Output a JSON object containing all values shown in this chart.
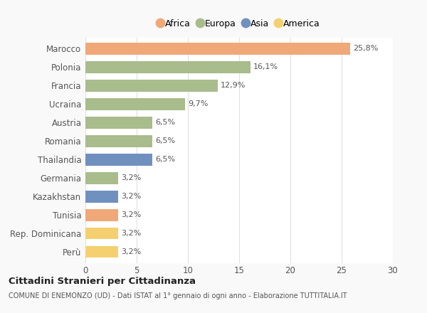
{
  "categories": [
    "Marocco",
    "Polonia",
    "Francia",
    "Ucraina",
    "Austria",
    "Romania",
    "Thailandia",
    "Germania",
    "Kazakhstan",
    "Tunisia",
    "Rep. Dominicana",
    "Perù"
  ],
  "values": [
    25.8,
    16.1,
    12.9,
    9.7,
    6.5,
    6.5,
    6.5,
    3.2,
    3.2,
    3.2,
    3.2,
    3.2
  ],
  "labels": [
    "25,8%",
    "16,1%",
    "12,9%",
    "9,7%",
    "6,5%",
    "6,5%",
    "6,5%",
    "3,2%",
    "3,2%",
    "3,2%",
    "3,2%",
    "3,2%"
  ],
  "colors": [
    "#F0A878",
    "#A8BC8C",
    "#A8BC8C",
    "#A8BC8C",
    "#A8BC8C",
    "#A8BC8C",
    "#7090C0",
    "#A8BC8C",
    "#7090C0",
    "#F0A878",
    "#F5D070",
    "#F5D070"
  ],
  "legend_labels": [
    "Africa",
    "Europa",
    "Asia",
    "America"
  ],
  "legend_colors": [
    "#F0A878",
    "#A8BC8C",
    "#7090C0",
    "#F5D070"
  ],
  "title": "Cittadini Stranieri per Cittadinanza",
  "subtitle": "COMUNE DI ENEMONZO (UD) - Dati ISTAT al 1° gennaio di ogni anno - Elaborazione TUTTITALIA.IT",
  "xlim": [
    0,
    30
  ],
  "xticks": [
    0,
    5,
    10,
    15,
    20,
    25,
    30
  ],
  "background_color": "#f9f9f9",
  "bar_background": "#ffffff",
  "grid_color": "#e0e0e0"
}
